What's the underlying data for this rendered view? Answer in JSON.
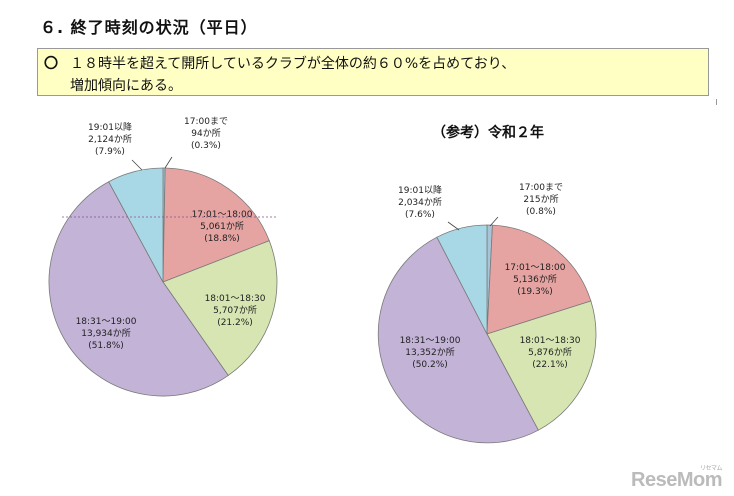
{
  "heading": "６. 終了時刻の状況（平日）",
  "callout": {
    "mark": "〇",
    "line1": "１８時半を超えて開所しているクラブが全体の約６０%を占めており、",
    "line2": "増加傾向にある。"
  },
  "watermark": {
    "brand": "ReseMom",
    "sub": "リセマム"
  },
  "chart_data": [
    {
      "type": "pie",
      "title": "",
      "slices": [
        {
          "key": "s1",
          "label": "17:00まで",
          "count": "94か所",
          "pct": "(0.3%)",
          "value": 0.3,
          "color": "#a8c4d8"
        },
        {
          "key": "s2",
          "label": "17:01～18:00",
          "count": "5,061か所",
          "pct": "(18.8%)",
          "value": 18.8,
          "color": "#e5a4a2"
        },
        {
          "key": "s3",
          "label": "18:01～18:30",
          "count": "5,707か所",
          "pct": "(21.2%)",
          "value": 21.2,
          "color": "#d6e5b2"
        },
        {
          "key": "s4",
          "label": "18:31～19:00",
          "count": "13,934か所",
          "pct": "(51.8%)",
          "value": 51.8,
          "color": "#c2b3d7"
        },
        {
          "key": "s5",
          "label": "19:01以降",
          "count": "2,124か所",
          "pct": "(7.9%)",
          "value": 7.9,
          "color": "#a8d8e6"
        }
      ]
    },
    {
      "type": "pie",
      "title": "（参考）令和２年",
      "slices": [
        {
          "key": "s1",
          "label": "17:00まで",
          "count": "215か所",
          "pct": "(0.8%)",
          "value": 0.8,
          "color": "#a8c4d8"
        },
        {
          "key": "s2",
          "label": "17:01～18:00",
          "count": "5,136か所",
          "pct": "(19.3%)",
          "value": 19.3,
          "color": "#e5a4a2"
        },
        {
          "key": "s3",
          "label": "18:01～18:30",
          "count": "5,876か所",
          "pct": "(22.1%)",
          "value": 22.1,
          "color": "#d6e5b2"
        },
        {
          "key": "s4",
          "label": "18:31～19:00",
          "count": "13,352か所",
          "pct": "(50.2%)",
          "value": 50.2,
          "color": "#c2b3d7"
        },
        {
          "key": "s5",
          "label": "19:01以降",
          "count": "2,034か所",
          "pct": "(7.6%)",
          "value": 7.6,
          "color": "#a8d8e6"
        }
      ]
    }
  ]
}
